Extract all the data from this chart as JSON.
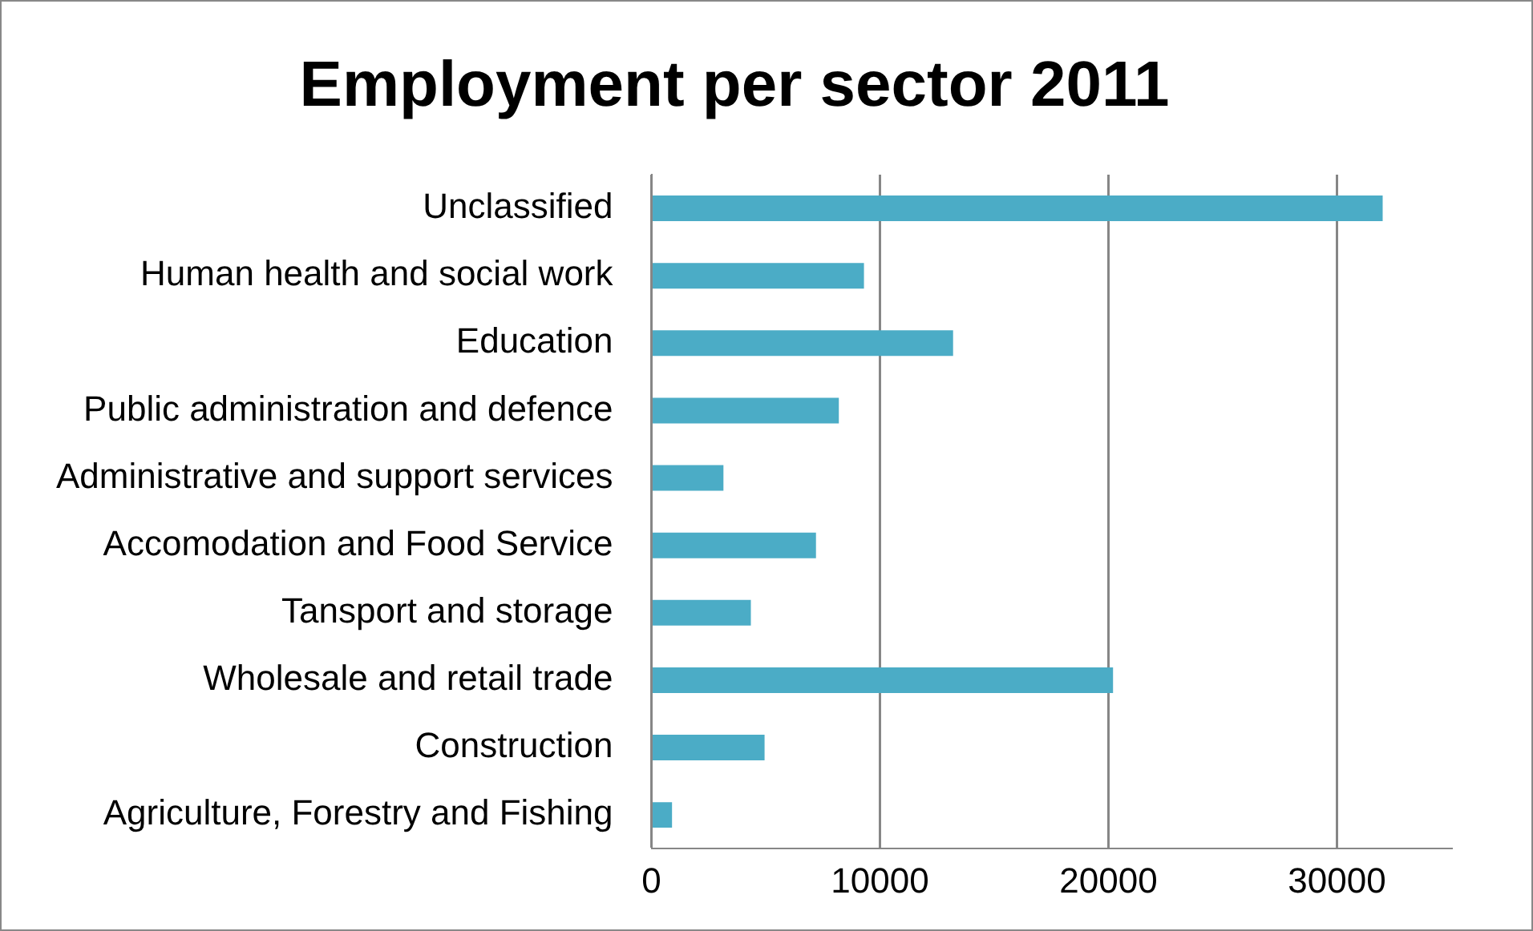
{
  "chart_data": {
    "type": "bar",
    "orientation": "horizontal",
    "title": "Employment per sector 2011",
    "categories": [
      "Unclassified",
      "Human health and social work",
      "Education",
      "Public administration and defence",
      "Administrative and support services",
      "Accomodation and Food Service",
      "Tansport and storage",
      "Wholesale and retail trade",
      "Construction",
      "Agriculture, Forestry and Fishing"
    ],
    "values": [
      32000,
      9300,
      13200,
      8200,
      3150,
      7200,
      4350,
      20200,
      4950,
      900
    ],
    "color": "#4bacc6",
    "xlim": [
      0,
      35000
    ],
    "xticks": [
      0,
      10000,
      20000,
      30000
    ],
    "grid": "x",
    "legend": false
  }
}
